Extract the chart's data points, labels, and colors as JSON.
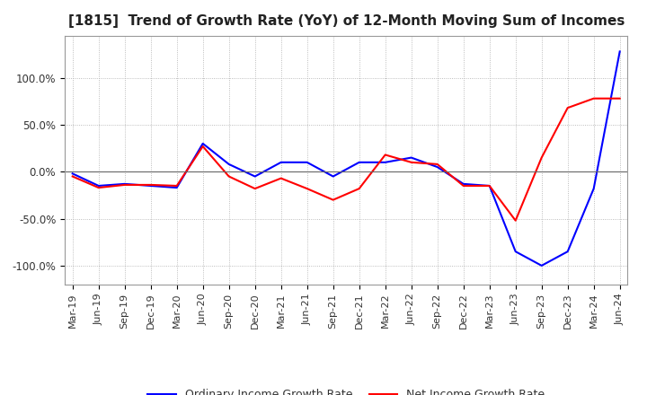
{
  "title": "[1815]  Trend of Growth Rate (YoY) of 12-Month Moving Sum of Incomes",
  "title_fontsize": 11,
  "ylim": [
    -1.2,
    1.45
  ],
  "yticks": [
    -1.0,
    -0.5,
    0.0,
    0.5,
    1.0
  ],
  "ytick_labels": [
    "-100.0%",
    "-50.0%",
    "0.0%",
    "50.0%",
    "100.0%"
  ],
  "legend_labels": [
    "Ordinary Income Growth Rate",
    "Net Income Growth Rate"
  ],
  "legend_colors": [
    "#0000ff",
    "#ff0000"
  ],
  "background_color": "#ffffff",
  "grid_color": "#aaaaaa",
  "x_labels": [
    "Mar-19",
    "Jun-19",
    "Sep-19",
    "Dec-19",
    "Mar-20",
    "Jun-20",
    "Sep-20",
    "Dec-20",
    "Mar-21",
    "Jun-21",
    "Sep-21",
    "Dec-21",
    "Mar-22",
    "Jun-22",
    "Sep-22",
    "Dec-22",
    "Mar-23",
    "Jun-23",
    "Sep-23",
    "Dec-23",
    "Mar-24",
    "Jun-24"
  ],
  "ordinary_income_growth": [
    -0.02,
    -0.15,
    -0.13,
    -0.15,
    -0.17,
    0.3,
    0.08,
    -0.05,
    0.1,
    0.1,
    -0.05,
    0.1,
    0.1,
    0.15,
    0.05,
    -0.13,
    -0.15,
    -0.85,
    -1.0,
    -0.85,
    -0.18,
    1.28
  ],
  "net_income_growth": [
    -0.05,
    -0.17,
    -0.14,
    -0.14,
    -0.15,
    0.27,
    -0.05,
    -0.18,
    -0.07,
    -0.18,
    -0.3,
    -0.18,
    0.18,
    0.1,
    0.08,
    -0.15,
    -0.15,
    -0.52,
    0.15,
    0.68,
    0.78,
    0.78
  ]
}
